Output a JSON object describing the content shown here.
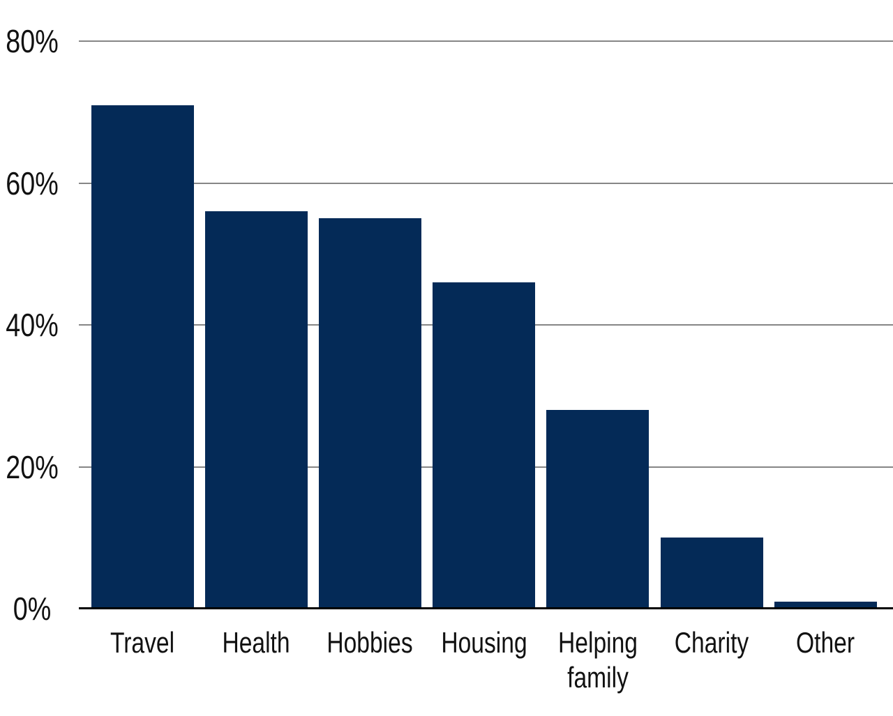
{
  "chart_data": {
    "type": "bar",
    "title": "",
    "xlabel": "",
    "ylabel": "",
    "categories": [
      "Travel",
      "Health",
      "Hobbies",
      "Housing",
      "Helping family",
      "Charity",
      "Other"
    ],
    "values": [
      71,
      56,
      55,
      46,
      28,
      10,
      1
    ],
    "unit": "%",
    "ylim": [
      0,
      80
    ],
    "yticks": [
      {
        "value": 0,
        "label": "0%"
      },
      {
        "value": 20,
        "label": "20%"
      },
      {
        "value": 40,
        "label": "40%"
      },
      {
        "value": 60,
        "label": "60%"
      },
      {
        "value": 80,
        "label": "80%"
      }
    ],
    "grid": true,
    "legend": null,
    "colors": {
      "bar": "#042a57",
      "gridline": "#868686",
      "axis_line": "#000000",
      "text": "#111111",
      "background": "#ffffff"
    }
  }
}
